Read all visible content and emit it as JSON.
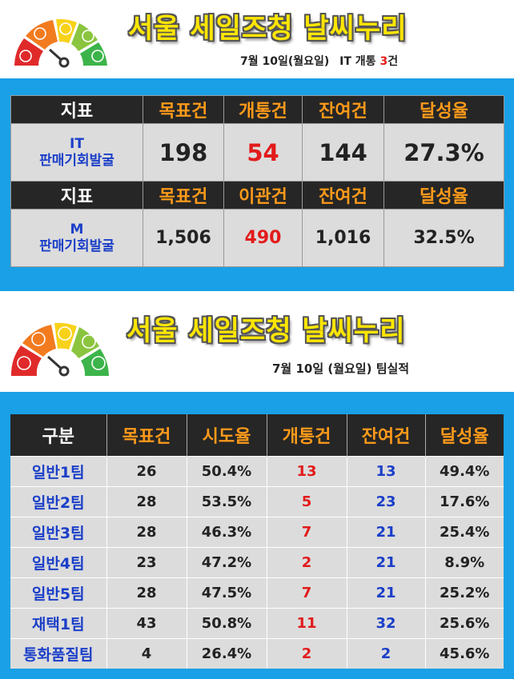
{
  "panel1": {
    "title": "서울 세일즈청 날씨누리",
    "subtitle": {
      "date": "7월 10일(월요일)",
      "it_label": "IT 개통",
      "it_count": "3",
      "it_unit": "건"
    },
    "header1": [
      "지표",
      "목표건",
      "개통건",
      "잔여건",
      "달성율"
    ],
    "row1": {
      "label_line1": "IT",
      "label_line2": "판매기회발굴",
      "target": "198",
      "done": "54",
      "remain": "144",
      "rate": "27.3%"
    },
    "header2": [
      "지표",
      "목표건",
      "이관건",
      "잔여건",
      "달성율"
    ],
    "row2": {
      "label_line1": "M",
      "label_line2": "판매기회발굴",
      "target": "1,506",
      "done": "490",
      "remain": "1,016",
      "rate": "32.5%"
    }
  },
  "panel2": {
    "title": "서울 세일즈청 날씨누리",
    "subtitle": "7월 10일 (월요일) 팀실적",
    "columns": [
      "구분",
      "목표건",
      "시도율",
      "개통건",
      "잔여건",
      "달성율"
    ],
    "rows": [
      [
        "일반1팀",
        "26",
        "50.4%",
        "13",
        "13",
        "49.4%"
      ],
      [
        "일반2팀",
        "28",
        "53.5%",
        "5",
        "23",
        "17.6%"
      ],
      [
        "일반3팀",
        "28",
        "46.3%",
        "7",
        "21",
        "25.4%"
      ],
      [
        "일반4팀",
        "23",
        "47.2%",
        "2",
        "21",
        "8.9%"
      ],
      [
        "일반5팀",
        "28",
        "47.5%",
        "7",
        "21",
        "25.2%"
      ],
      [
        "재택1팀",
        "43",
        "50.8%",
        "11",
        "32",
        "25.6%"
      ],
      [
        "통화품질팀",
        "4",
        "26.4%",
        "2",
        "2",
        "45.6%"
      ]
    ]
  },
  "colors": {
    "band": "#1aa0e6",
    "title_yellow": "#ffe600",
    "header_bg": "#262626",
    "header_orange": "#ff9a1a",
    "label_blue": "#1b3fc8",
    "value_red": "#e21b1b"
  },
  "icons": [
    "weather-gauge-icon"
  ]
}
